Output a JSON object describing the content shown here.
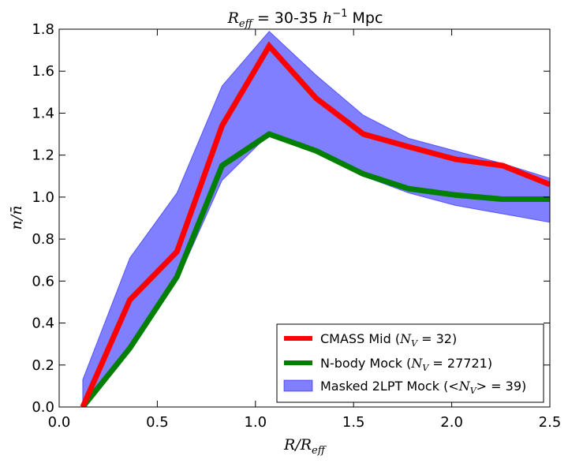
{
  "chart_data": {
    "type": "line",
    "title": "R_eff = 30-35 h^-1 Mpc",
    "title_parts": {
      "symbol": "R",
      "subscript": "eff",
      "range": " = 30-35 ",
      "h": "h",
      "exponent": "−1",
      "unit": " Mpc"
    },
    "xlabel": "R/R_eff",
    "xlabel_parts": {
      "main": "R/R",
      "subscript": "eff"
    },
    "ylabel": "n/n̄",
    "xlim": [
      0.0,
      2.5
    ],
    "ylim": [
      0.0,
      1.8
    ],
    "xticks": [
      0.0,
      0.5,
      1.0,
      1.5,
      2.0,
      2.5
    ],
    "xtick_labels": [
      "0.0",
      "0.5",
      "1.0",
      "1.5",
      "2.0",
      "2.5"
    ],
    "yticks": [
      0.0,
      0.2,
      0.4,
      0.6,
      0.8,
      1.0,
      1.2,
      1.4,
      1.6,
      1.8
    ],
    "ytick_labels": [
      "0.0",
      "0.2",
      "0.4",
      "0.6",
      "0.8",
      "1.0",
      "1.2",
      "1.4",
      "1.6",
      "1.8"
    ],
    "grid": false,
    "legend_position": "lower-right",
    "x": [
      0.12,
      0.36,
      0.6,
      0.83,
      1.07,
      1.31,
      1.55,
      1.78,
      2.02,
      2.26,
      2.5
    ],
    "series": [
      {
        "name": "CMASS Mid (N_V = 32)",
        "legend_text": "CMASS Mid (",
        "legend_var": "N",
        "legend_sub": "V",
        "legend_rest": " = 32)",
        "color": "#ff0000",
        "kind": "line",
        "values": [
          0.0,
          0.51,
          0.74,
          1.34,
          1.72,
          1.47,
          1.3,
          1.24,
          1.18,
          1.15,
          1.06
        ]
      },
      {
        "name": "N-body Mock (N_V = 27721)",
        "legend_text": "N-body Mock (",
        "legend_var": "N",
        "legend_sub": "V",
        "legend_rest": " = 27721)",
        "color": "#007f00",
        "kind": "line",
        "values": [
          0.0,
          0.28,
          0.62,
          1.15,
          1.3,
          1.22,
          1.11,
          1.04,
          1.01,
          0.99,
          0.99
        ]
      },
      {
        "name": "Masked 2LPT Mock (<N_V> = 39)",
        "legend_text": "Masked 2LPT Mock (",
        "legend_var": "<N",
        "legend_sub": "V",
        "legend_rest": "> = 39)",
        "color": "#0000ff",
        "kind": "band",
        "upper": [
          0.13,
          0.71,
          1.02,
          1.53,
          1.79,
          1.58,
          1.39,
          1.28,
          1.22,
          1.16,
          1.09
        ],
        "lower": [
          0.0,
          0.29,
          0.6,
          1.08,
          1.3,
          1.23,
          1.1,
          1.02,
          0.96,
          0.92,
          0.88
        ]
      }
    ]
  }
}
